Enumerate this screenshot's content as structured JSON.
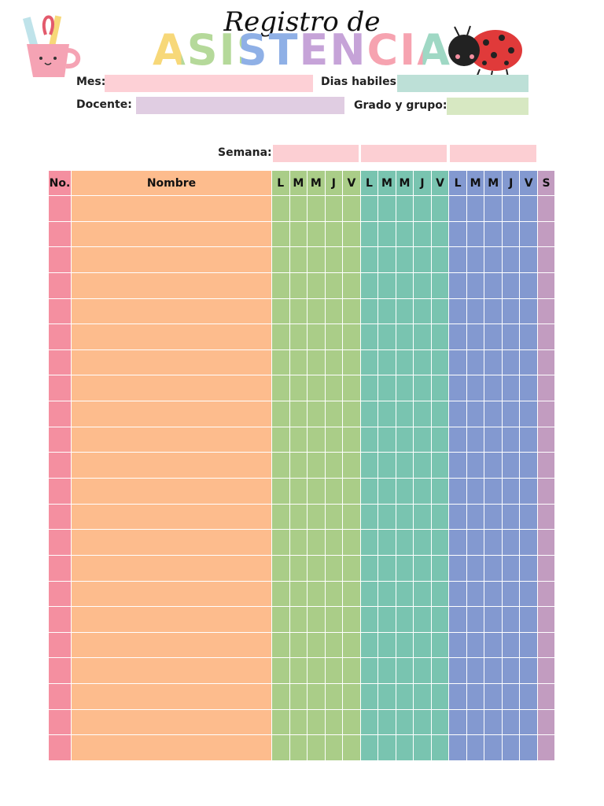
{
  "header": {
    "title_line1": "Registro de",
    "title_line2": "ASISTENCIA"
  },
  "fields": {
    "mes": "Mes:",
    "dias_habiles": "Dias habiles:",
    "docente": "Docente:",
    "grado_grupo": "Grado y grupo:",
    "semana": "Semana:"
  },
  "table": {
    "columns": [
      "No.",
      "Nombre"
    ],
    "weeks": [
      [
        "L",
        "M",
        "M",
        "J",
        "V"
      ],
      [
        "L",
        "M",
        "M",
        "J",
        "V"
      ],
      [
        "L",
        "M",
        "M",
        "J",
        "V"
      ]
    ],
    "last_column": "S"
  }
}
